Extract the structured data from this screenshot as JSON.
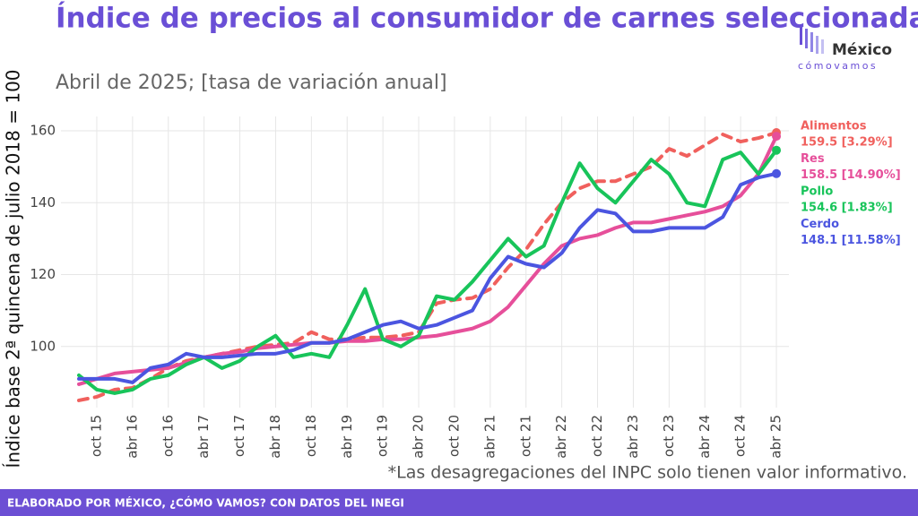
{
  "chart_data": {
    "type": "line",
    "title": "Índice de precios al consumidor de carnes seleccionadas",
    "subtitle": "Abril de 2025; [tasa de variación anual]",
    "y_label": "Índice base 2ª quincena de julio 2018 = 100",
    "note": "*Las desagregaciones del INPC solo tienen valor informativo.",
    "footer": "ELABORADO POR MÉXICO, ¿CÓMO VAMOS? CON DATOS DEL INEGI",
    "logo": {
      "top": "México",
      "bottom": "cómovamos"
    },
    "categories": [
      null,
      "oct 15",
      null,
      "abr 16",
      null,
      "oct 16",
      null,
      "abr 17",
      null,
      "oct 17",
      null,
      "abr 18",
      null,
      "oct 18",
      null,
      "abr 19",
      null,
      "oct 19",
      null,
      "abr 20",
      null,
      "oct 20",
      null,
      "abr 21",
      null,
      "oct 21",
      null,
      "abr 22",
      null,
      "oct 22",
      null,
      "abr 23",
      null,
      "oct 23",
      null,
      "abr 24",
      null,
      "oct 24",
      null,
      "abr 25"
    ],
    "ylim": [
      83,
      164
    ],
    "yticks": [
      100,
      120,
      140,
      160
    ],
    "grid": true,
    "series": [
      {
        "name": "Alimentos",
        "color": "#f0605d",
        "dash": true,
        "end_label": "159.5 [3.29%]",
        "values": [
          85,
          86,
          88,
          88.5,
          91,
          94,
          96,
          97,
          98,
          99,
          100,
          100.5,
          101,
          104,
          102,
          102,
          102.5,
          102.5,
          103,
          104,
          112,
          113,
          113.5,
          116,
          122,
          127,
          134,
          140,
          144,
          146,
          146,
          148,
          150,
          155,
          153,
          156,
          159,
          157,
          158,
          159.5
        ]
      },
      {
        "name": "Res",
        "color": "#e64f9a",
        "dash": false,
        "end_label": "158.5 [14.90%]",
        "values": [
          89.5,
          91,
          92.5,
          93,
          93.5,
          94,
          95.5,
          97,
          98,
          98.5,
          99.5,
          100,
          100.5,
          101,
          101,
          101.5,
          101.5,
          102,
          102,
          102.5,
          103,
          104,
          105,
          107,
          111,
          117,
          123,
          128,
          130,
          131,
          133,
          134.5,
          134.5,
          135.5,
          136.5,
          137.5,
          139,
          142,
          148,
          158.5
        ]
      },
      {
        "name": "Pollo",
        "color": "#18c45a",
        "dash": false,
        "end_label": "154.6 [1.83%]",
        "values": [
          92,
          88,
          87,
          88,
          91,
          92,
          95,
          97,
          94,
          96,
          100,
          103,
          97,
          98,
          97,
          106,
          116,
          102,
          100,
          103,
          114,
          113,
          118,
          124,
          130,
          125,
          128,
          140,
          151,
          144,
          140,
          146,
          152,
          148,
          140,
          139,
          152,
          154,
          148,
          154.6
        ]
      },
      {
        "name": "Cerdo",
        "color": "#4b55e0",
        "dash": false,
        "end_label": "148.1 [11.58%]",
        "values": [
          91,
          91,
          91,
          90,
          94,
          95,
          98,
          97,
          97,
          97.5,
          98,
          98,
          99,
          101,
          101,
          102,
          104,
          106,
          107,
          105,
          106,
          108,
          110,
          119,
          125,
          123,
          122,
          126,
          133,
          138,
          137,
          132,
          132,
          133,
          133,
          133,
          136,
          145,
          147,
          148.1
        ]
      }
    ]
  }
}
